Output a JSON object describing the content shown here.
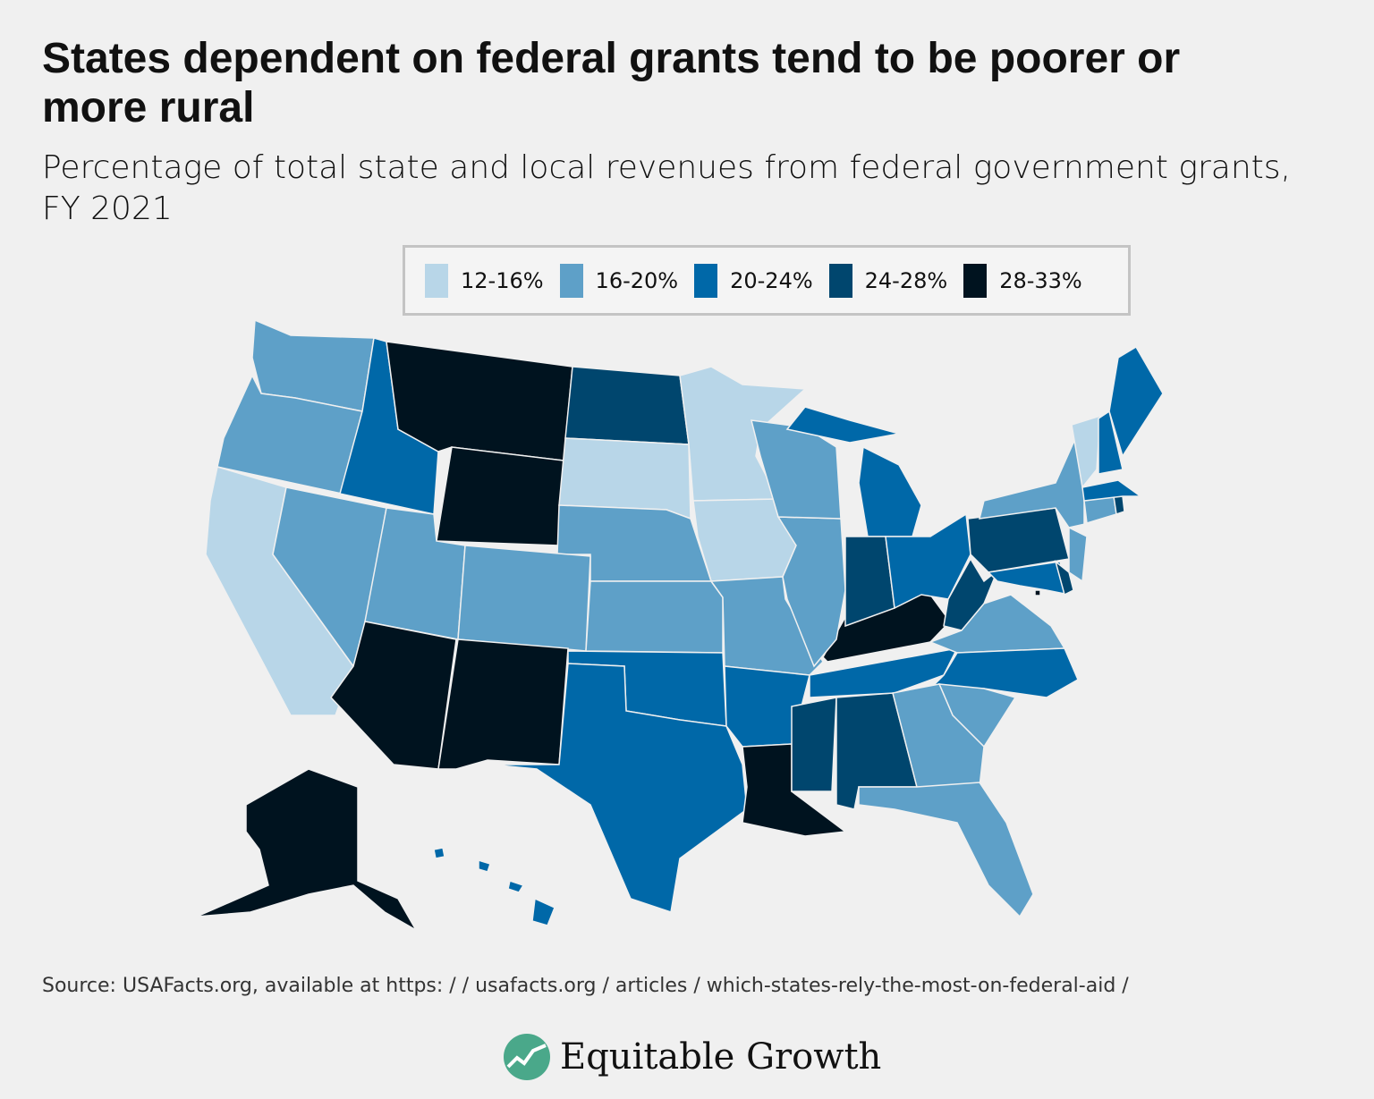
{
  "title": "States dependent on federal grants tend to be poorer or more rural",
  "subtitle": "Percentage of total state and local revenues from federal government grants, FY 2021",
  "legend": [
    {
      "label": "12-16%",
      "color": "#b8d6e8"
    },
    {
      "label": "16-20%",
      "color": "#5ea0c8"
    },
    {
      "label": "20-24%",
      "color": "#0068a8"
    },
    {
      "label": "24-28%",
      "color": "#00466e"
    },
    {
      "label": "28-33%",
      "color": "#00131f"
    }
  ],
  "map_data": {
    "type": "choropleth",
    "region": "United States",
    "states_by_bin": {
      "12-16%": [
        "CA",
        "SD",
        "MN",
        "IA",
        "VT"
      ],
      "16-20%": [
        "WA",
        "OR",
        "NV",
        "UT",
        "CO",
        "NE",
        "KS",
        "MO",
        "IL",
        "WI",
        "NY",
        "CT",
        "NJ",
        "VA",
        "GA",
        "SC",
        "FL"
      ],
      "20-24%": [
        "ID",
        "TX",
        "OK",
        "AR",
        "TN",
        "NC",
        "MI",
        "OH",
        "ME",
        "NH",
        "MA",
        "MD",
        "HI"
      ],
      "24-28%": [
        "ND",
        "IN",
        "PA",
        "WV",
        "MS",
        "AL",
        "RI",
        "DE"
      ],
      "28-33%": [
        "MT",
        "WY",
        "AZ",
        "NM",
        "LA",
        "KY",
        "AK",
        "DC"
      ]
    }
  },
  "source": "Source: USAFacts.org, available at https: / / usafacts.org / articles / which-states-rely-the-most-on-federal-aid /",
  "logo": {
    "text": "Equitable Growth",
    "color": "#4aa88a"
  }
}
